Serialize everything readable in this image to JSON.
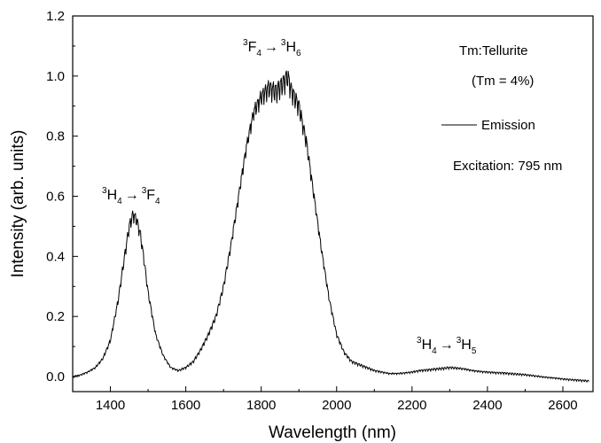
{
  "chart_data": {
    "type": "line",
    "title": "",
    "xlabel": "Wavelength (nm)",
    "ylabel": "Intensity (arb. units)",
    "xlim": [
      1300,
      2680
    ],
    "ylim": [
      -0.05,
      1.2
    ],
    "x_ticks": [
      1400,
      1600,
      1800,
      2000,
      2200,
      2400,
      2600
    ],
    "x_tick_labels": [
      "1400",
      "1600",
      "1800",
      "2000",
      "2200",
      "2400",
      "2600"
    ],
    "y_ticks": [
      0.0,
      0.2,
      0.4,
      0.6,
      0.8,
      1.0,
      1.2
    ],
    "y_tick_labels": [
      "0.0",
      "0.2",
      "0.4",
      "0.6",
      "0.8",
      "1.0",
      "1.2"
    ],
    "grid": false,
    "legend": {
      "position": "top-right",
      "entries": [
        "Emission"
      ]
    },
    "series": [
      {
        "name": "Emission",
        "color": "#000000",
        "x": [
          1300,
          1320,
          1340,
          1360,
          1380,
          1400,
          1420,
          1440,
          1450,
          1460,
          1470,
          1480,
          1490,
          1500,
          1520,
          1540,
          1560,
          1580,
          1600,
          1620,
          1640,
          1660,
          1680,
          1700,
          1720,
          1740,
          1760,
          1780,
          1800,
          1820,
          1840,
          1860,
          1870,
          1880,
          1900,
          1920,
          1940,
          1960,
          1980,
          2000,
          2020,
          2040,
          2060,
          2080,
          2100,
          2120,
          2140,
          2160,
          2180,
          2200,
          2220,
          2240,
          2260,
          2280,
          2300,
          2320,
          2340,
          2360,
          2380,
          2400,
          2420,
          2440,
          2460,
          2480,
          2500,
          2520,
          2540,
          2560,
          2580,
          2600,
          2620,
          2640,
          2660,
          2670
        ],
        "y": [
          0.0,
          0.005,
          0.015,
          0.03,
          0.06,
          0.12,
          0.25,
          0.42,
          0.5,
          0.54,
          0.52,
          0.47,
          0.38,
          0.28,
          0.14,
          0.07,
          0.03,
          0.02,
          0.03,
          0.05,
          0.09,
          0.14,
          0.2,
          0.3,
          0.44,
          0.6,
          0.76,
          0.88,
          0.93,
          0.96,
          0.95,
          0.98,
          1.0,
          0.95,
          0.9,
          0.78,
          0.6,
          0.42,
          0.26,
          0.14,
          0.08,
          0.05,
          0.04,
          0.03,
          0.02,
          0.015,
          0.01,
          0.01,
          0.012,
          0.015,
          0.02,
          0.022,
          0.025,
          0.027,
          0.03,
          0.028,
          0.025,
          0.02,
          0.017,
          0.015,
          0.013,
          0.012,
          0.01,
          0.008,
          0.006,
          0.003,
          0.0,
          -0.003,
          -0.005,
          -0.008,
          -0.01,
          -0.012,
          -0.014,
          -0.015
        ]
      }
    ],
    "annotations": {
      "sample": "Tm:Tellurite",
      "concentration": "(Tm = 4%)",
      "excitation": "Excitation: 795 nm"
    },
    "transitions": [
      {
        "from_sup": "3",
        "from_term": "H",
        "from_sub": "4",
        "arrow": "→",
        "to_sup": "3",
        "to_term": "F",
        "to_sub": "4"
      },
      {
        "from_sup": "3",
        "from_term": "F",
        "from_sub": "4",
        "arrow": "→",
        "to_sup": "3",
        "to_term": "H",
        "to_sub": "6"
      },
      {
        "from_sup": "3",
        "from_term": "H",
        "from_sub": "4",
        "arrow": "→",
        "to_sup": "3",
        "to_term": "H",
        "to_sub": "5"
      }
    ]
  }
}
